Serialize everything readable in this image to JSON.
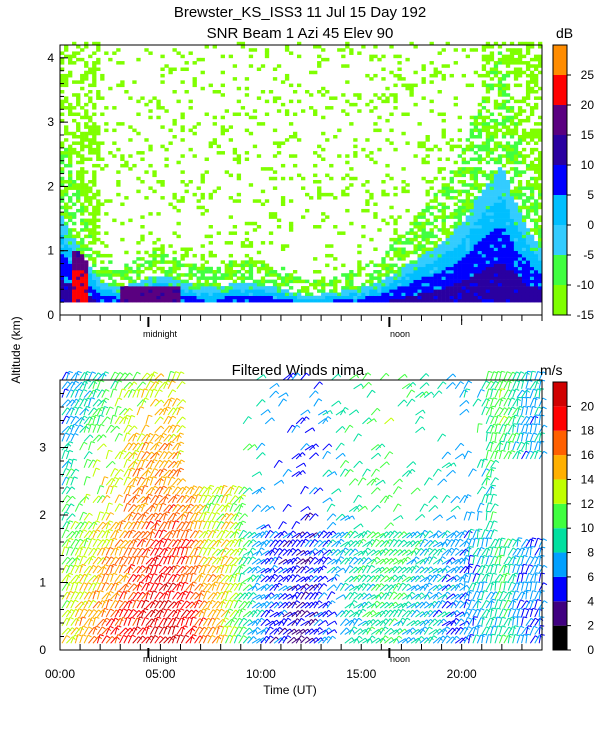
{
  "titles": {
    "line1": "Brewster_KS_ISS3  11 Jul 15 Day 192",
    "line2": "SNR Beam 1 Azi  45 Elev 90",
    "panel2": "Filtered Winds nima."
  },
  "axes": {
    "y_label": "Altitude (km)",
    "x_label": "Time (UT)",
    "midnight_label": "midnight",
    "noon_label": "noon"
  },
  "colors": {
    "frame": "#000000",
    "snr_palette": [
      "#7fff00",
      "#40ff40",
      "#33ccff",
      "#00bfff",
      "#0000ff",
      "#2a00a0",
      "#5a0080",
      "#ff0000",
      "#ff8c00",
      "#ffc000"
    ],
    "wind_palette": [
      "#000000",
      "#400080",
      "#0000ff",
      "#00a0ff",
      "#00e0a0",
      "#40ff40",
      "#c0ff00",
      "#ffb000",
      "#ff6000",
      "#ff0000",
      "#d00000"
    ]
  },
  "chart_data": [
    {
      "type": "heatmap",
      "title": "SNR Beam 1 Azi  45 Elev 90",
      "ylabel": "Altitude (km)",
      "ylim": [
        0,
        4.2
      ],
      "y_ticks": [
        0,
        1,
        2,
        3,
        4
      ],
      "x_markers": [
        "midnight",
        "noon"
      ],
      "colorbar": {
        "unit": "dB",
        "ticks": [
          -15,
          -10,
          -5,
          0,
          5,
          10,
          15,
          20,
          25
        ],
        "range": [
          -15,
          30
        ],
        "bins": [
          -15,
          -10,
          -5,
          0,
          5,
          10,
          15,
          20,
          25,
          30
        ]
      },
      "description_of_values": "Approximate top of the strong-signal layer (km) by time of day; weak echoes (about -15 to -10 dB) scattered above.",
      "profile": {
        "time_hours": [
          0,
          1,
          2,
          3,
          4,
          5,
          6,
          7,
          8,
          9,
          10,
          11,
          12,
          13,
          14,
          15,
          16,
          17,
          18,
          19,
          20,
          21,
          22,
          23,
          24
        ],
        "layer_top_km": [
          1.6,
          1.0,
          0.5,
          0.4,
          0.5,
          0.6,
          0.5,
          0.4,
          0.4,
          0.5,
          0.45,
          0.4,
          0.3,
          0.3,
          0.35,
          0.4,
          0.5,
          0.7,
          0.9,
          1.1,
          1.4,
          1.9,
          2.3,
          1.5,
          1.0
        ]
      }
    },
    {
      "type": "scatter",
      "title": "Filtered Winds nima.",
      "ylabel": "Altitude (km)",
      "xlabel": "Time (UT)",
      "ylim": [
        0,
        4
      ],
      "y_ticks": [
        0,
        1,
        2,
        3
      ],
      "xlim": [
        "00:00",
        "24:00"
      ],
      "x_ticks": [
        "00:00",
        "05:00",
        "10:00",
        "15:00",
        "20:00"
      ],
      "colorbar": {
        "unit": "m/s",
        "ticks": [
          0,
          2,
          4,
          6,
          8,
          10,
          12,
          14,
          16,
          18,
          20
        ],
        "range": [
          0,
          22
        ]
      },
      "description_of_values": "Wind barbs; approximate low-level wind speed (m/s) by hour near 0.5 km.",
      "low_level_speed": {
        "time_hours": [
          0,
          2,
          4,
          5,
          6,
          7,
          8,
          10,
          12,
          14,
          16,
          18,
          20,
          22,
          23
        ],
        "speed_ms": [
          12,
          16,
          19,
          20,
          19,
          16,
          14,
          6,
          4,
          8,
          10,
          8,
          6,
          10,
          6
        ]
      }
    }
  ]
}
